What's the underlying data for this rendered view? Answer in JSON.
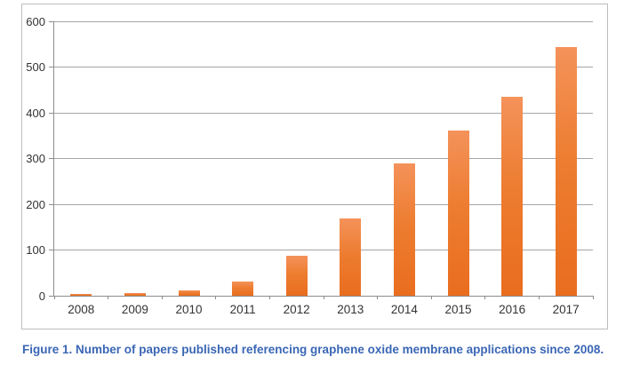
{
  "figure": {
    "caption": "Figure 1. Number of papers published referencing graphene oxide membrane applications since 2008.",
    "caption_color": "#3a66b5"
  },
  "chart_data": {
    "type": "bar",
    "title": "",
    "xlabel": "",
    "ylabel": "",
    "categories": [
      "2008",
      "2009",
      "2010",
      "2011",
      "2012",
      "2013",
      "2014",
      "2015",
      "2016",
      "2017"
    ],
    "values": [
      3,
      6,
      12,
      32,
      87,
      168,
      290,
      362,
      435,
      543
    ],
    "ylim": [
      0,
      600
    ],
    "yticks": [
      0,
      100,
      200,
      300,
      400,
      500,
      600
    ],
    "grid": true,
    "legend": false,
    "bar_color": "#ED7D31",
    "bar_gradient_top": "#F4925A",
    "bar_gradient_bottom": "#E96D1F",
    "gridline_color": "#a6a6a6",
    "axis_color": "#8c8c8c",
    "tick_label_color": "#333333",
    "chart_border_color": "#bdbdbd"
  }
}
